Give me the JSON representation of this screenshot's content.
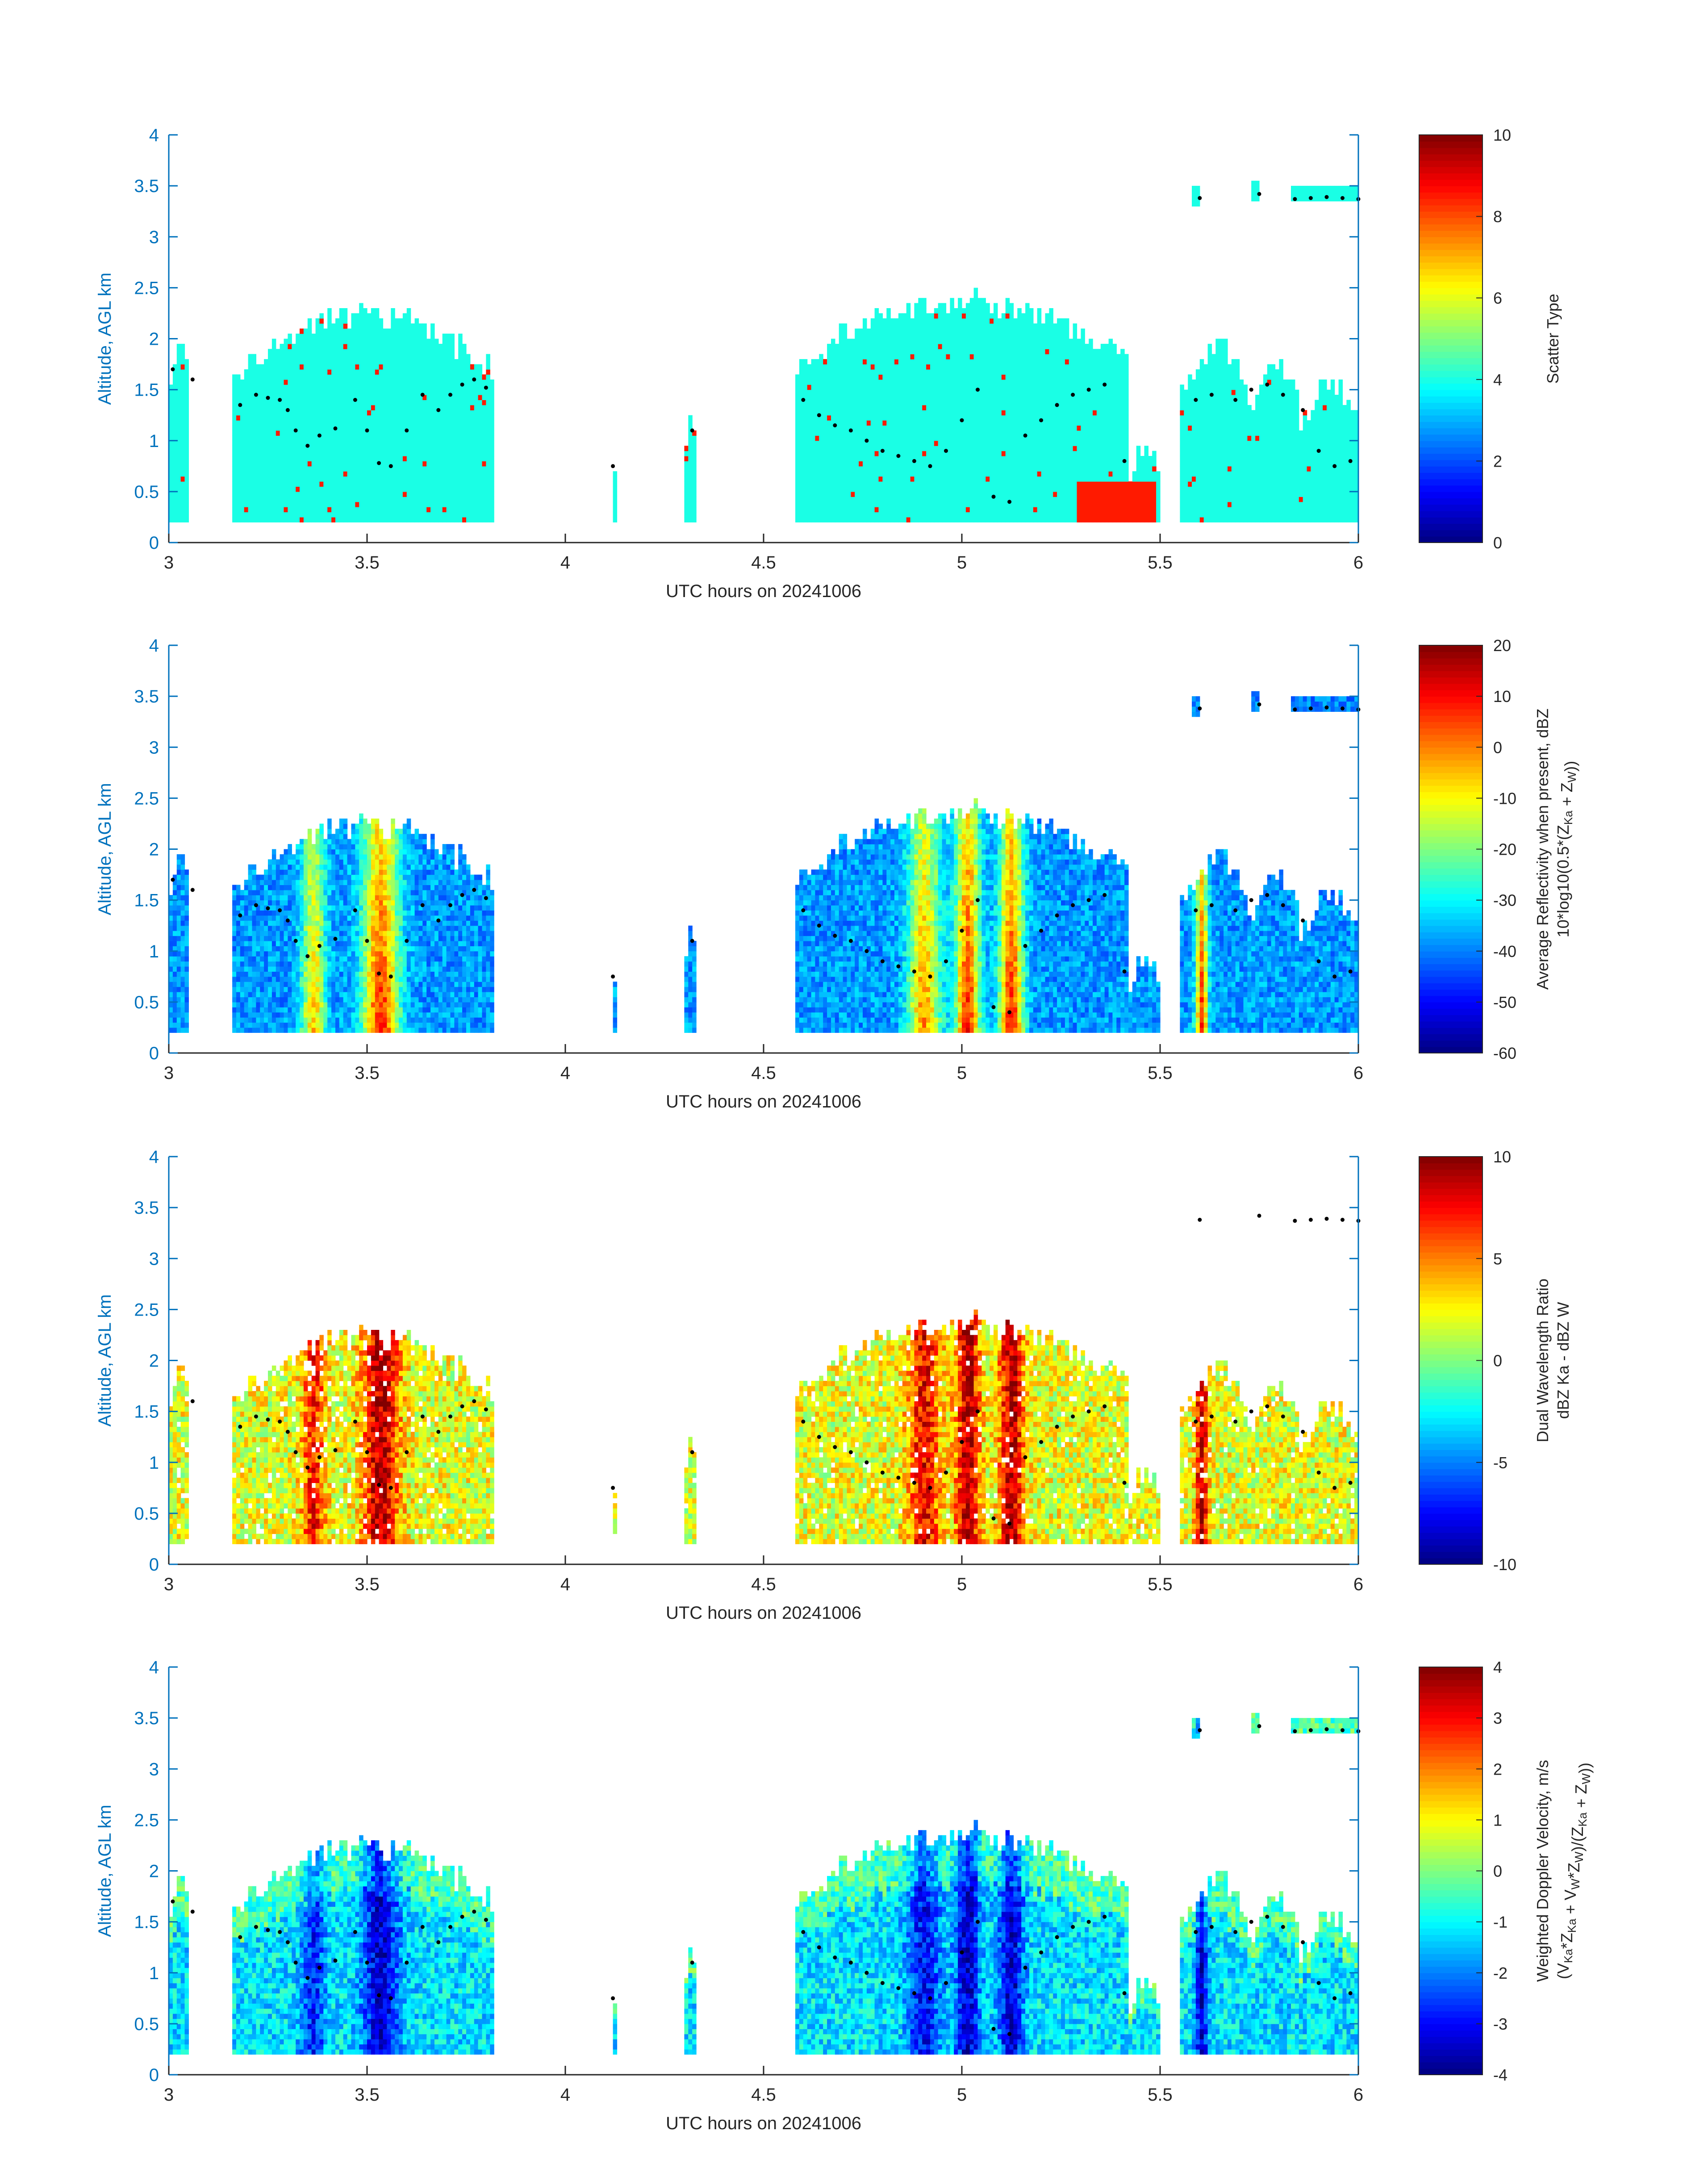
{
  "chart_data": [
    {
      "type": "heatmap",
      "xlabel": "UTC hours on 20241006",
      "ylabel": "Altitude, AGL km",
      "xlim": [
        3,
        6
      ],
      "ylim": [
        0,
        4
      ],
      "xticks": [
        "3",
        "3.5",
        "4",
        "4.5",
        "5",
        "5.5",
        "6"
      ],
      "yticks": [
        "0",
        "0.5",
        "1",
        "1.5",
        "2",
        "2.5",
        "3",
        "3.5",
        "4"
      ],
      "colorbar": {
        "label_lines": [
          "Scatter Type"
        ],
        "ticks": [
          "0",
          "2",
          "4",
          "6",
          "8",
          "10"
        ],
        "range": [
          0,
          10
        ]
      }
    },
    {
      "type": "heatmap",
      "xlabel": "UTC hours on 20241006",
      "ylabel": "Altitude, AGL km",
      "xlim": [
        3,
        6
      ],
      "ylim": [
        0,
        4
      ],
      "xticks": [
        "3",
        "3.5",
        "4",
        "4.5",
        "5",
        "5.5",
        "6"
      ],
      "yticks": [
        "0",
        "0.5",
        "1",
        "1.5",
        "2",
        "2.5",
        "3",
        "3.5",
        "4"
      ],
      "colorbar": {
        "label_lines": [
          "Average Reflectivity when present, dBZ",
          "10*log10(0.5*(Z_Ka + Z_W))"
        ],
        "ticks": [
          "-60",
          "-50",
          "-40",
          "-30",
          "-20",
          "-10",
          "0",
          "10",
          "20"
        ],
        "range": [
          -60,
          20
        ]
      }
    },
    {
      "type": "heatmap",
      "xlabel": "UTC hours on 20241006",
      "ylabel": "Altitude, AGL km",
      "xlim": [
        3,
        6
      ],
      "ylim": [
        0,
        4
      ],
      "xticks": [
        "3",
        "3.5",
        "4",
        "4.5",
        "5",
        "5.5",
        "6"
      ],
      "yticks": [
        "0",
        "0.5",
        "1",
        "1.5",
        "2",
        "2.5",
        "3",
        "3.5",
        "4"
      ],
      "colorbar": {
        "label_lines": [
          "Dual Wavelength Ratio",
          "dBZ Ka - dBZ W"
        ],
        "ticks": [
          "-10",
          "-5",
          "0",
          "5",
          "10"
        ],
        "range": [
          -10,
          10
        ]
      }
    },
    {
      "type": "heatmap",
      "xlabel": "UTC hours on 20241006",
      "ylabel": "Altitude, AGL km",
      "xlim": [
        3,
        6
      ],
      "ylim": [
        0,
        4
      ],
      "xticks": [
        "3",
        "3.5",
        "4",
        "4.5",
        "5",
        "5.5",
        "6"
      ],
      "yticks": [
        "0",
        "0.5",
        "1",
        "1.5",
        "2",
        "2.5",
        "3",
        "3.5",
        "4"
      ],
      "colorbar": {
        "label_lines": [
          "Weighted Doppler Velocity, m/s",
          "(V_Ka*Z_Ka + V_W*Z_W)/(Z_Ka + Z_W))"
        ],
        "ticks": [
          "-4",
          "-3",
          "-2",
          "-1",
          "0",
          "1",
          "2",
          "3",
          "4"
        ],
        "range": [
          -4,
          4
        ]
      }
    }
  ],
  "echo_regions": [
    {
      "x": [
        3.0,
        3.05
      ],
      "ytop": 1.9
    },
    {
      "x": [
        3.16,
        3.82
      ],
      "ytop": 2.2
    },
    {
      "x": [
        4.12,
        4.13
      ],
      "ytop": 0.9
    },
    {
      "x": [
        4.3,
        4.33
      ],
      "ytop": 1.2
    },
    {
      "x": [
        4.58,
        5.42
      ],
      "ytop": 2.35
    },
    {
      "x": [
        5.42,
        5.5
      ],
      "ytop": 0.9
    },
    {
      "x": [
        5.55,
        5.72
      ],
      "ytop": 1.9
    },
    {
      "x": [
        5.72,
        5.85
      ],
      "ytop": 1.7
    },
    {
      "x": [
        5.85,
        6.0
      ],
      "ytop": 1.5
    },
    {
      "x": [
        5.58,
        5.6
      ],
      "ybottom": 3.3,
      "ytop": 3.5
    },
    {
      "x": [
        5.73,
        5.75
      ],
      "ybottom": 3.35,
      "ytop": 3.55
    },
    {
      "x": [
        5.83,
        6.0
      ],
      "ybottom": 3.35,
      "ytop": 3.5
    }
  ],
  "cloud_base_points": {
    "x": [
      3.01,
      3.06,
      3.18,
      3.22,
      3.25,
      3.28,
      3.3,
      3.32,
      3.35,
      3.38,
      3.42,
      3.47,
      3.5,
      3.53,
      3.56,
      3.6,
      3.64,
      3.68,
      3.71,
      3.74,
      3.77,
      3.8,
      4.12,
      4.32,
      4.6,
      4.64,
      4.68,
      4.72,
      4.76,
      4.8,
      4.84,
      4.88,
      4.92,
      4.96,
      5.0,
      5.04,
      5.08,
      5.12,
      5.16,
      5.2,
      5.24,
      5.28,
      5.32,
      5.36,
      5.41,
      5.59,
      5.63,
      5.69,
      5.73,
      5.77,
      5.81,
      5.86,
      5.9,
      5.94,
      5.98,
      5.6,
      5.75,
      5.84,
      5.88,
      5.92,
      5.96,
      6.0
    ],
    "y": [
      1.7,
      1.6,
      1.35,
      1.45,
      1.42,
      1.4,
      1.3,
      1.1,
      0.95,
      1.05,
      1.12,
      1.4,
      1.1,
      0.78,
      0.75,
      1.1,
      1.45,
      1.3,
      1.45,
      1.55,
      1.6,
      1.52,
      0.75,
      1.1,
      1.4,
      1.25,
      1.15,
      1.1,
      1.0,
      0.9,
      0.85,
      0.8,
      0.75,
      0.9,
      1.2,
      1.5,
      0.45,
      0.4,
      1.05,
      1.2,
      1.35,
      1.45,
      1.5,
      1.55,
      0.8,
      1.4,
      1.45,
      1.4,
      1.5,
      1.55,
      1.45,
      1.3,
      0.9,
      0.75,
      0.8,
      3.38,
      3.42,
      3.37,
      3.38,
      3.39,
      3.38,
      3.37
    ]
  }
}
